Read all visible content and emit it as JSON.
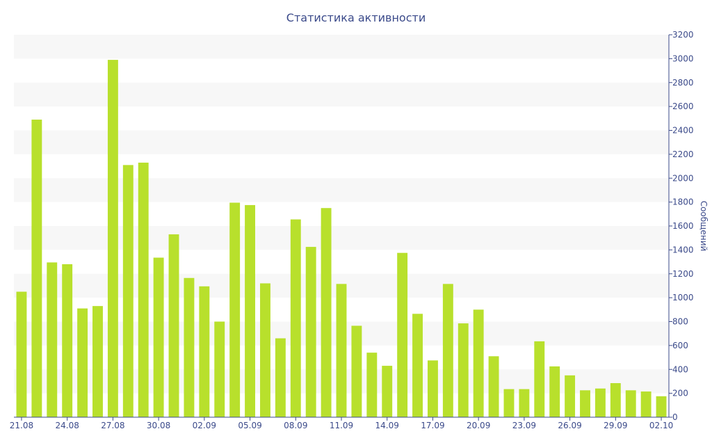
{
  "chart_data": {
    "type": "bar",
    "title": "Статистика активности",
    "xlabel": "",
    "ylabel": "Сообщений",
    "y_axis_side": "right",
    "ylim": [
      0,
      3200
    ],
    "y_ticks": [
      0,
      200,
      400,
      600,
      800,
      1000,
      1200,
      1400,
      1600,
      1800,
      2000,
      2200,
      2400,
      2600,
      2800,
      3000,
      3200
    ],
    "x_tick_labels": [
      "21.08",
      "24.08",
      "27.08",
      "30.08",
      "02.09",
      "05.09",
      "08.09",
      "11.09",
      "14.09",
      "17.09",
      "20.09",
      "23.09",
      "26.09",
      "29.09",
      "02.10"
    ],
    "grid": "alternating horizontal bands",
    "bar_color": "#b8e02c",
    "band_color": "#f7f7f7",
    "categories": [
      "21.08",
      "22.08",
      "23.08",
      "24.08",
      "25.08",
      "26.08",
      "27.08",
      "28.08",
      "29.08",
      "30.08",
      "31.08",
      "01.09",
      "02.09",
      "03.09",
      "04.09",
      "05.09",
      "06.09",
      "07.09",
      "08.09",
      "09.09",
      "10.09",
      "11.09",
      "12.09",
      "13.09",
      "14.09",
      "15.09",
      "16.09",
      "17.09",
      "18.09",
      "19.09",
      "20.09",
      "21.09",
      "22.09",
      "23.09",
      "24.09",
      "25.09",
      "26.09",
      "27.09",
      "28.09",
      "29.09",
      "30.09",
      "01.10",
      "02.10"
    ],
    "values": [
      1050,
      2490,
      1295,
      1280,
      910,
      930,
      2990,
      2110,
      2130,
      1335,
      1530,
      1165,
      1095,
      800,
      1795,
      1775,
      1120,
      660,
      1655,
      1425,
      1750,
      1115,
      765,
      540,
      430,
      1375,
      865,
      475,
      1115,
      785,
      900,
      510,
      235,
      235,
      635,
      425,
      350,
      225,
      240,
      285,
      225,
      215,
      175
    ]
  }
}
